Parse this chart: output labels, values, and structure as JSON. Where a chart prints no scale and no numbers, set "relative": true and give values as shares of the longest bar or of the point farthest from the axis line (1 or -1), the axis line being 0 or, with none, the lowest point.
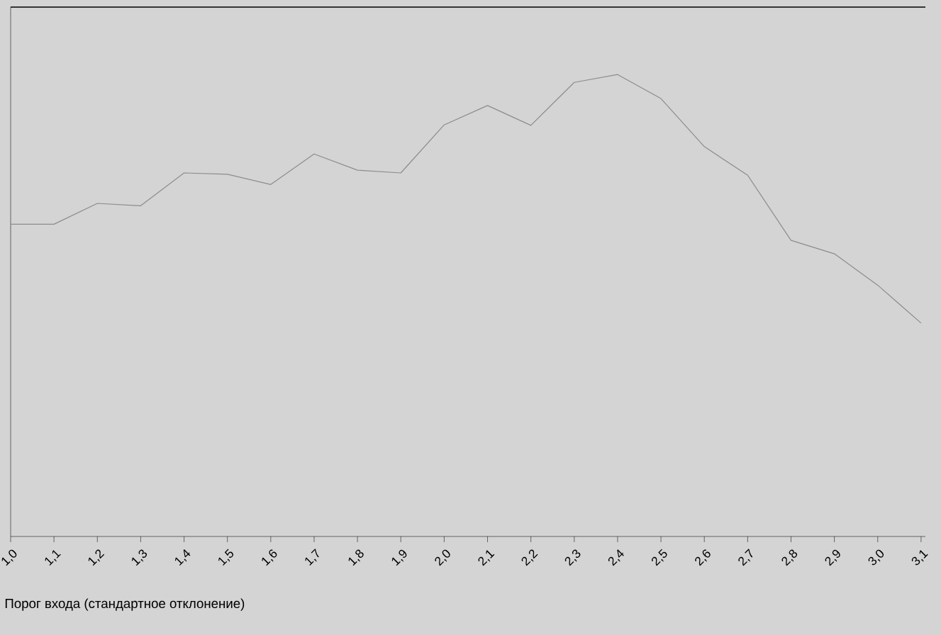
{
  "chart_data": {
    "type": "line",
    "relative": true,
    "xlabel": "Порог входа (стандартное отклонение)",
    "x": [
      1.0,
      1.1,
      1.2,
      1.3,
      1.4,
      1.5,
      1.6,
      1.7,
      1.8,
      1.9,
      2.0,
      2.1,
      2.2,
      2.3,
      2.4,
      2.5,
      2.6,
      2.7,
      2.8,
      2.9,
      3.0,
      3.1
    ],
    "values": [
      0.676,
      0.676,
      0.721,
      0.716,
      0.787,
      0.784,
      0.762,
      0.828,
      0.793,
      0.787,
      0.891,
      0.933,
      0.89,
      0.983,
      1.0,
      0.948,
      0.844,
      0.782,
      0.641,
      0.612,
      0.544,
      0.462
    ],
    "color": "#8c8c8c",
    "xlim": [
      1.0,
      3.11
    ],
    "xticks": [
      {
        "value": 1.0,
        "label": "1,0"
      },
      {
        "value": 1.1,
        "label": "1,1"
      },
      {
        "value": 1.2,
        "label": "1,2"
      },
      {
        "value": 1.3,
        "label": "1,3"
      },
      {
        "value": 1.4,
        "label": "1,4"
      },
      {
        "value": 1.5,
        "label": "1,5"
      },
      {
        "value": 1.6,
        "label": "1,6"
      },
      {
        "value": 1.7,
        "label": "1,7"
      },
      {
        "value": 1.8,
        "label": "1,8"
      },
      {
        "value": 1.9,
        "label": "1,9"
      },
      {
        "value": 2.0,
        "label": "2,0"
      },
      {
        "value": 2.1,
        "label": "2,1"
      },
      {
        "value": 2.2,
        "label": "2,2"
      },
      {
        "value": 2.3,
        "label": "2,3"
      },
      {
        "value": 2.4,
        "label": "2,4"
      },
      {
        "value": 2.5,
        "label": "2,5"
      },
      {
        "value": 2.6,
        "label": "2,6"
      },
      {
        "value": 2.7,
        "label": "2,7"
      },
      {
        "value": 2.8,
        "label": "2,8"
      },
      {
        "value": 2.9,
        "label": "2,9"
      },
      {
        "value": 3.0,
        "label": "3,0"
      },
      {
        "value": 3.1,
        "label": "3,1"
      }
    ],
    "marker": "none",
    "line_style": "solid"
  }
}
